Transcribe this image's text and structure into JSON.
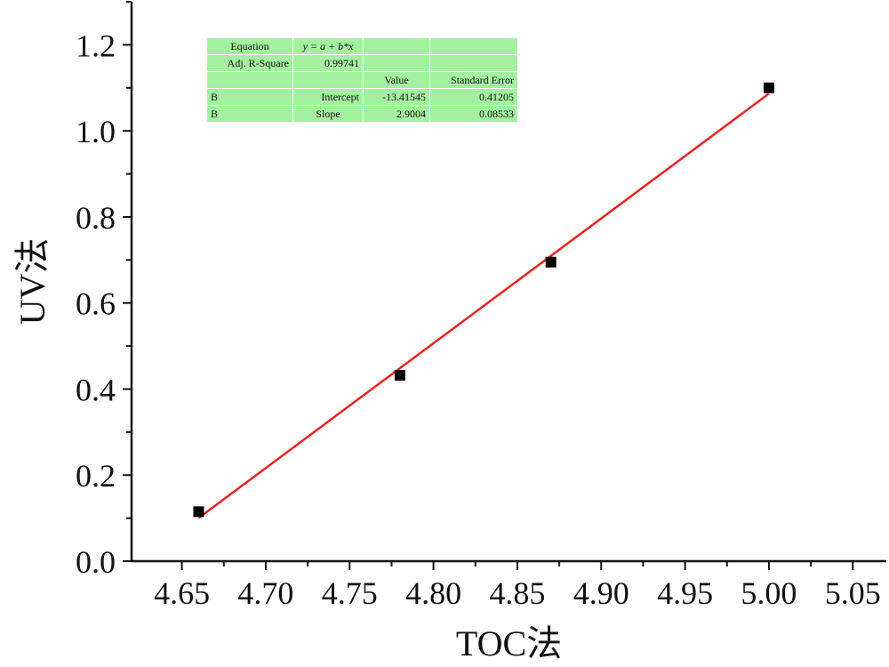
{
  "chart_data": {
    "type": "scatter",
    "xlabel": "TOC法",
    "ylabel": "UV法",
    "xlim": [
      4.62,
      5.07
    ],
    "ylim": [
      0.0,
      1.3
    ],
    "x_ticks": [
      "4.65",
      "4.70",
      "4.75",
      "4.80",
      "4.85",
      "4.90",
      "4.95",
      "5.00",
      "5.05"
    ],
    "y_ticks": [
      "0.0",
      "0.2",
      "0.4",
      "0.6",
      "0.8",
      "1.0",
      "1.2"
    ],
    "series": [
      {
        "points": [
          {
            "x": 4.66,
            "y": 0.115
          },
          {
            "x": 4.78,
            "y": 0.432
          },
          {
            "x": 4.87,
            "y": 0.695
          },
          {
            "x": 5.0,
            "y": 1.1
          }
        ],
        "marker": "square",
        "color": "#000000"
      }
    ],
    "fit_line": {
      "intercept": -13.41545,
      "slope": 2.9004,
      "x_range": [
        4.66,
        5.0
      ],
      "color": "#e8241f"
    },
    "fit_table": {
      "rows": [
        [
          "Equation",
          "y = a + b*x",
          "",
          ""
        ],
        [
          "Adj. R-Square",
          "0.99741",
          "",
          ""
        ],
        [
          "",
          "",
          "Value",
          "Standard Error"
        ],
        [
          "B",
          "Intercept",
          "-13.41545",
          "0.41205"
        ],
        [
          "B",
          "Slope",
          "2.9004",
          "0.08533"
        ]
      ],
      "background": "#a4f0a0"
    },
    "grid": false
  }
}
